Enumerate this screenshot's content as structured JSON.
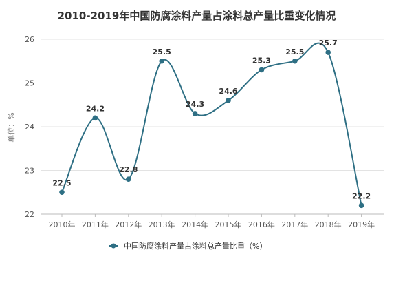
{
  "chart_data": {
    "type": "line",
    "title": "2010-2019年中国防腐涂料产量占涂料总产量比重变化情况",
    "ylabel": "单位：%",
    "xlabel": "",
    "categories": [
      "2010年",
      "2011年",
      "2012年",
      "2013年",
      "2014年",
      "2015年",
      "2016年",
      "2017年",
      "2018年",
      "2019年"
    ],
    "series": [
      {
        "name": "中国防腐涂料产量占涂料总产量比重（%）",
        "values": [
          22.5,
          24.2,
          22.8,
          25.5,
          24.3,
          24.6,
          25.3,
          25.5,
          25.7,
          22.2
        ]
      }
    ],
    "ylim": [
      22,
      26
    ],
    "yticks": [
      "22",
      "23",
      "24",
      "25",
      "26"
    ],
    "grid": true,
    "legend": "bottom-center",
    "colors": {
      "line": "#2e6f84",
      "marker": "#2e6f84",
      "grid": "#e3e3e3"
    }
  }
}
